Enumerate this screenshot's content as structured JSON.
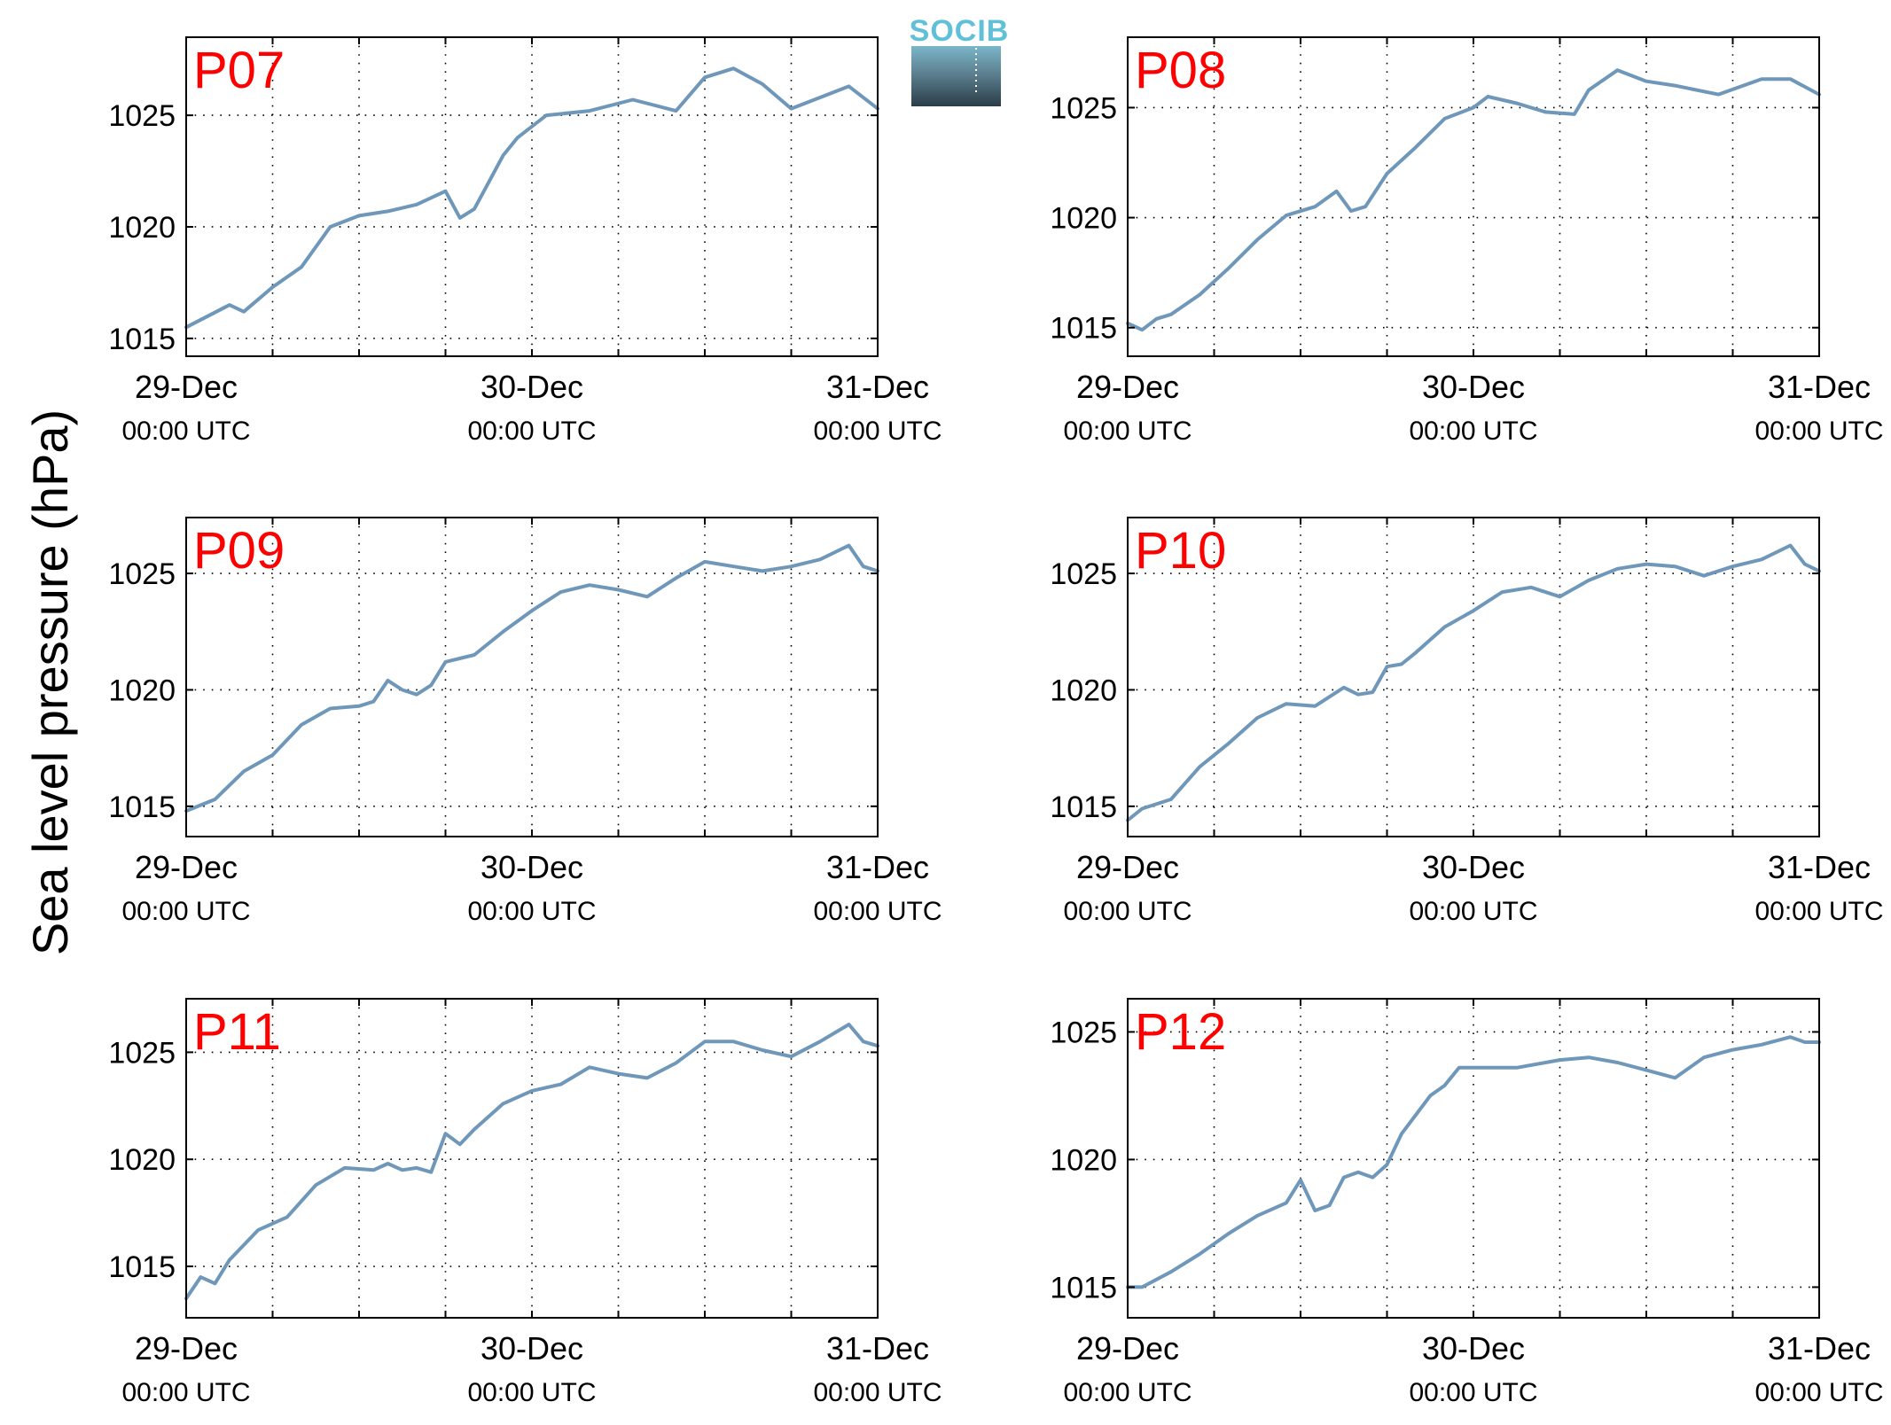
{
  "figure": {
    "ylabel": "Sea level pressure (hPa)",
    "logo_text": "SOCIB",
    "line_color": "#6f97b9",
    "label_color": "#ff0000"
  },
  "chart_data": [
    {
      "type": "line",
      "title": "P07",
      "x_unit": "hours since 29-Dec 00:00 UTC",
      "xticks": [
        {
          "date": "29-Dec",
          "time": "00:00 UTC"
        },
        {
          "date": "30-Dec",
          "time": "00:00 UTC"
        },
        {
          "date": "31-Dec",
          "time": "00:00 UTC"
        }
      ],
      "xlim": [
        "29-Dec 00:00 UTC",
        "31-Dec 00:00 UTC"
      ],
      "ylim": [
        1014.2,
        1028.5
      ],
      "yticks": [
        "1015",
        "1020",
        "1025"
      ],
      "grid": true,
      "series": [
        {
          "x": [
            "29-Dec 00:00",
            "29-Dec 03:00",
            "29-Dec 04:00",
            "29-Dec 06:00",
            "29-Dec 08:00",
            "29-Dec 10:00",
            "29-Dec 12:00",
            "29-Dec 14:00",
            "29-Dec 16:00",
            "29-Dec 18:00",
            "29-Dec 19:00",
            "29-Dec 20:00",
            "29-Dec 21:00",
            "29-Dec 22:00",
            "29-Dec 23:00",
            "30-Dec 01:00",
            "30-Dec 04:00",
            "30-Dec 07:00",
            "30-Dec 10:00",
            "30-Dec 12:00",
            "30-Dec 14:00",
            "30-Dec 16:00",
            "30-Dec 18:00",
            "30-Dec 20:00",
            "30-Dec 22:00",
            "31-Dec 00:00"
          ],
          "y": [
            1015.5,
            1016.5,
            1016.2,
            1017.3,
            1018.2,
            1020.0,
            1020.5,
            1020.7,
            1021.0,
            1021.6,
            1020.4,
            1020.8,
            1022.0,
            1023.2,
            1024.0,
            1025.0,
            1025.2,
            1025.7,
            1025.2,
            1026.7,
            1027.1,
            1026.4,
            1025.3,
            1025.8,
            1026.3,
            1025.3
          ]
        }
      ]
    },
    {
      "type": "line",
      "title": "P08",
      "x_unit": "hours since 29-Dec 00:00 UTC",
      "xticks": [
        {
          "date": "29-Dec",
          "time": "00:00 UTC"
        },
        {
          "date": "30-Dec",
          "time": "00:00 UTC"
        },
        {
          "date": "31-Dec",
          "time": "00:00 UTC"
        }
      ],
      "xlim": [
        "29-Dec 00:00 UTC",
        "31-Dec 00:00 UTC"
      ],
      "ylim": [
        1013.7,
        1028.2
      ],
      "yticks": [
        "1015",
        "1020",
        "1025"
      ],
      "grid": true,
      "series": [
        {
          "x": [
            "29-Dec 00:00",
            "29-Dec 01:00",
            "29-Dec 02:00",
            "29-Dec 03:00",
            "29-Dec 05:00",
            "29-Dec 07:00",
            "29-Dec 09:00",
            "29-Dec 11:00",
            "29-Dec 13:00",
            "29-Dec 14:30",
            "29-Dec 15:30",
            "29-Dec 16:30",
            "29-Dec 18:00",
            "29-Dec 20:00",
            "29-Dec 22:00",
            "30-Dec 00:00",
            "30-Dec 01:00",
            "30-Dec 03:00",
            "30-Dec 05:00",
            "30-Dec 07:00",
            "30-Dec 08:00",
            "30-Dec 10:00",
            "30-Dec 12:00",
            "30-Dec 14:00",
            "30-Dec 17:00",
            "30-Dec 20:00",
            "30-Dec 22:00",
            "31-Dec 00:00"
          ],
          "y": [
            1015.2,
            1014.9,
            1015.4,
            1015.6,
            1016.5,
            1017.7,
            1019.0,
            1020.1,
            1020.5,
            1021.2,
            1020.3,
            1020.5,
            1022.0,
            1023.2,
            1024.5,
            1025.0,
            1025.5,
            1025.2,
            1024.8,
            1024.7,
            1025.8,
            1026.7,
            1026.2,
            1026.0,
            1025.6,
            1026.3,
            1026.3,
            1025.6
          ]
        }
      ]
    },
    {
      "type": "line",
      "title": "P09",
      "x_unit": "hours since 29-Dec 00:00 UTC",
      "xticks": [
        {
          "date": "29-Dec",
          "time": "00:00 UTC"
        },
        {
          "date": "30-Dec",
          "time": "00:00 UTC"
        },
        {
          "date": "31-Dec",
          "time": "00:00 UTC"
        }
      ],
      "xlim": [
        "29-Dec 00:00 UTC",
        "31-Dec 00:00 UTC"
      ],
      "ylim": [
        1013.7,
        1027.4
      ],
      "yticks": [
        "1015",
        "1020",
        "1025"
      ],
      "grid": true,
      "series": [
        {
          "x": [
            "29-Dec 00:00",
            "29-Dec 02:00",
            "29-Dec 04:00",
            "29-Dec 06:00",
            "29-Dec 08:00",
            "29-Dec 10:00",
            "29-Dec 12:00",
            "29-Dec 13:00",
            "29-Dec 14:00",
            "29-Dec 15:00",
            "29-Dec 16:00",
            "29-Dec 17:00",
            "29-Dec 18:00",
            "29-Dec 20:00",
            "29-Dec 22:00",
            "30-Dec 00:00",
            "30-Dec 02:00",
            "30-Dec 04:00",
            "30-Dec 06:00",
            "30-Dec 08:00",
            "30-Dec 10:00",
            "30-Dec 12:00",
            "30-Dec 14:00",
            "30-Dec 16:00",
            "30-Dec 18:00",
            "30-Dec 20:00",
            "30-Dec 22:00",
            "30-Dec 23:00",
            "31-Dec 00:00"
          ],
          "y": [
            1014.8,
            1015.3,
            1016.5,
            1017.2,
            1018.5,
            1019.2,
            1019.3,
            1019.5,
            1020.4,
            1020.0,
            1019.8,
            1020.2,
            1021.2,
            1021.5,
            1022.5,
            1023.4,
            1024.2,
            1024.5,
            1024.3,
            1024.0,
            1024.8,
            1025.5,
            1025.3,
            1025.1,
            1025.3,
            1025.6,
            1026.2,
            1025.3,
            1025.1
          ]
        }
      ]
    },
    {
      "type": "line",
      "title": "P10",
      "x_unit": "hours since 29-Dec 00:00 UTC",
      "xticks": [
        {
          "date": "29-Dec",
          "time": "00:00 UTC"
        },
        {
          "date": "30-Dec",
          "time": "00:00 UTC"
        },
        {
          "date": "31-Dec",
          "time": "00:00 UTC"
        }
      ],
      "xlim": [
        "29-Dec 00:00 UTC",
        "31-Dec 00:00 UTC"
      ],
      "ylim": [
        1013.7,
        1027.4
      ],
      "yticks": [
        "1015",
        "1020",
        "1025"
      ],
      "grid": true,
      "series": [
        {
          "x": [
            "29-Dec 00:00",
            "29-Dec 01:00",
            "29-Dec 03:00",
            "29-Dec 05:00",
            "29-Dec 07:00",
            "29-Dec 09:00",
            "29-Dec 11:00",
            "29-Dec 13:00",
            "29-Dec 15:00",
            "29-Dec 16:00",
            "29-Dec 17:00",
            "29-Dec 18:00",
            "29-Dec 19:00",
            "29-Dec 20:00",
            "29-Dec 22:00",
            "30-Dec 00:00",
            "30-Dec 02:00",
            "30-Dec 04:00",
            "30-Dec 06:00",
            "30-Dec 08:00",
            "30-Dec 10:00",
            "30-Dec 12:00",
            "30-Dec 14:00",
            "30-Dec 16:00",
            "30-Dec 18:00",
            "30-Dec 20:00",
            "30-Dec 22:00",
            "30-Dec 23:00",
            "31-Dec 00:00"
          ],
          "y": [
            1014.4,
            1014.9,
            1015.3,
            1016.7,
            1017.7,
            1018.8,
            1019.4,
            1019.3,
            1020.1,
            1019.8,
            1019.9,
            1021.0,
            1021.1,
            1021.6,
            1022.7,
            1023.4,
            1024.2,
            1024.4,
            1024.0,
            1024.7,
            1025.2,
            1025.4,
            1025.3,
            1024.9,
            1025.3,
            1025.6,
            1026.2,
            1025.4,
            1025.1
          ]
        }
      ]
    },
    {
      "type": "line",
      "title": "P11",
      "x_unit": "hours since 29-Dec 00:00 UTC",
      "xticks": [
        {
          "date": "29-Dec",
          "time": "00:00 UTC"
        },
        {
          "date": "30-Dec",
          "time": "00:00 UTC"
        },
        {
          "date": "31-Dec",
          "time": "00:00 UTC"
        }
      ],
      "xlim": [
        "29-Dec 00:00 UTC",
        "31-Dec 00:00 UTC"
      ],
      "ylim": [
        1012.6,
        1027.5
      ],
      "yticks": [
        "1015",
        "1020",
        "1025"
      ],
      "grid": true,
      "series": [
        {
          "x": [
            "29-Dec 00:00",
            "29-Dec 01:00",
            "29-Dec 02:00",
            "29-Dec 03:00",
            "29-Dec 05:00",
            "29-Dec 07:00",
            "29-Dec 09:00",
            "29-Dec 11:00",
            "29-Dec 13:00",
            "29-Dec 14:00",
            "29-Dec 15:00",
            "29-Dec 16:00",
            "29-Dec 17:00",
            "29-Dec 18:00",
            "29-Dec 19:00",
            "29-Dec 20:00",
            "29-Dec 22:00",
            "30-Dec 00:00",
            "30-Dec 02:00",
            "30-Dec 04:00",
            "30-Dec 06:00",
            "30-Dec 08:00",
            "30-Dec 10:00",
            "30-Dec 12:00",
            "30-Dec 14:00",
            "30-Dec 16:00",
            "30-Dec 18:00",
            "30-Dec 20:00",
            "30-Dec 22:00",
            "30-Dec 23:00",
            "31-Dec 00:00"
          ],
          "y": [
            1013.5,
            1014.5,
            1014.2,
            1015.3,
            1016.7,
            1017.3,
            1018.8,
            1019.6,
            1019.5,
            1019.8,
            1019.5,
            1019.6,
            1019.4,
            1021.2,
            1020.7,
            1021.4,
            1022.6,
            1023.2,
            1023.5,
            1024.3,
            1024.0,
            1023.8,
            1024.5,
            1025.5,
            1025.5,
            1025.1,
            1024.8,
            1025.5,
            1026.3,
            1025.5,
            1025.3
          ]
        }
      ]
    },
    {
      "type": "line",
      "title": "P12",
      "x_unit": "hours since 29-Dec 00:00 UTC",
      "xticks": [
        {
          "date": "29-Dec",
          "time": "00:00 UTC"
        },
        {
          "date": "30-Dec",
          "time": "00:00 UTC"
        },
        {
          "date": "31-Dec",
          "time": "00:00 UTC"
        }
      ],
      "xlim": [
        "29-Dec 00:00 UTC",
        "31-Dec 00:00 UTC"
      ],
      "ylim": [
        1013.8,
        1026.3
      ],
      "yticks": [
        "1015",
        "1020",
        "1025"
      ],
      "grid": true,
      "series": [
        {
          "x": [
            "29-Dec 00:00",
            "29-Dec 01:00",
            "29-Dec 03:00",
            "29-Dec 05:00",
            "29-Dec 07:00",
            "29-Dec 09:00",
            "29-Dec 11:00",
            "29-Dec 12:00",
            "29-Dec 13:00",
            "29-Dec 14:00",
            "29-Dec 15:00",
            "29-Dec 16:00",
            "29-Dec 17:00",
            "29-Dec 18:00",
            "29-Dec 19:00",
            "29-Dec 21:00",
            "29-Dec 22:00",
            "29-Dec 23:00",
            "30-Dec 01:00",
            "30-Dec 03:00",
            "30-Dec 06:00",
            "30-Dec 08:00",
            "30-Dec 10:00",
            "30-Dec 12:00",
            "30-Dec 14:00",
            "30-Dec 16:00",
            "30-Dec 18:00",
            "30-Dec 20:00",
            "30-Dec 22:00",
            "30-Dec 23:00",
            "31-Dec 00:00"
          ],
          "y": [
            1015.0,
            1015.0,
            1015.6,
            1016.3,
            1017.1,
            1017.8,
            1018.3,
            1019.2,
            1018.0,
            1018.2,
            1019.3,
            1019.5,
            1019.3,
            1019.8,
            1021.0,
            1022.5,
            1022.9,
            1023.6,
            1023.6,
            1023.6,
            1023.9,
            1024.0,
            1023.8,
            1023.5,
            1023.2,
            1024.0,
            1024.3,
            1024.5,
            1024.8,
            1024.6,
            1024.6
          ]
        }
      ]
    }
  ]
}
